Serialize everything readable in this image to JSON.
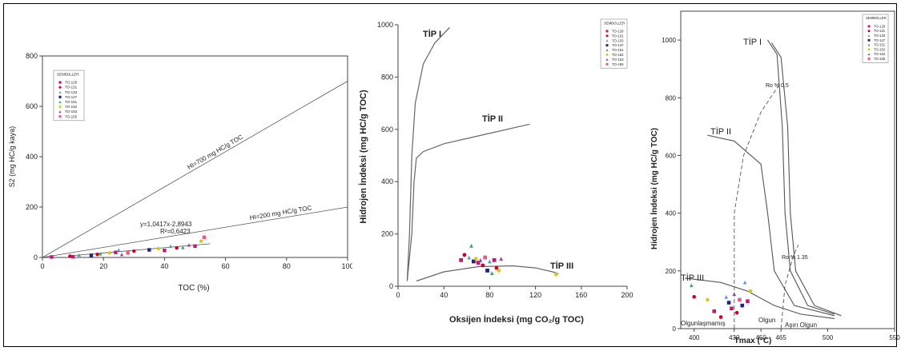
{
  "legend_title": "SEMBOLLER",
  "legend_items": [
    {
      "label": "TO-128",
      "color": "#cc1177",
      "symbol": "square"
    },
    {
      "label": "TO-131",
      "color": "#cc0022",
      "symbol": "circle"
    },
    {
      "label": "TO-133",
      "color": "#5599cc",
      "symbol": "triangle"
    },
    {
      "label": "TO-147",
      "color": "#222288",
      "symbol": "square"
    },
    {
      "label": "TO-151",
      "color": "#33aa55",
      "symbol": "triangle"
    },
    {
      "label": "TO-152",
      "color": "#cccc22",
      "symbol": "circle"
    },
    {
      "label": "TO-153",
      "color": "#9944aa",
      "symbol": "triangle"
    },
    {
      "label": "TO-155",
      "color": "#ee5588",
      "symbol": "square"
    }
  ],
  "chart_data": [
    {
      "type": "scatter",
      "xlabel": "TOC (%)",
      "ylabel": "S2 (mg HC/g kaya)",
      "xlim": [
        0,
        100
      ],
      "ylim": [
        0,
        800
      ],
      "xticks": [
        "0",
        "20",
        "40",
        "60",
        "80",
        "100"
      ],
      "yticks": [
        "0",
        "200",
        "400",
        "600",
        "800"
      ],
      "lines": [
        {
          "label": "HI=700 mg HC/g TOC",
          "slope": 7
        },
        {
          "label": "HI=200 mg HC/g TOC",
          "slope": 2
        }
      ],
      "regression": {
        "equation": "y=1,0417x-2,8943",
        "r2": "R²=0,6423"
      },
      "points": [
        {
          "x": 3,
          "y": 2,
          "s": 0
        },
        {
          "x": 9,
          "y": 5,
          "s": 1
        },
        {
          "x": 10,
          "y": 3,
          "s": 0
        },
        {
          "x": 12,
          "y": 10,
          "s": 2
        },
        {
          "x": 16,
          "y": 8,
          "s": 3
        },
        {
          "x": 18,
          "y": 12,
          "s": 1
        },
        {
          "x": 19,
          "y": 15,
          "s": 4
        },
        {
          "x": 22,
          "y": 18,
          "s": 5
        },
        {
          "x": 24,
          "y": 20,
          "s": 0
        },
        {
          "x": 25,
          "y": 30,
          "s": 2
        },
        {
          "x": 26,
          "y": 12,
          "s": 6
        },
        {
          "x": 28,
          "y": 18,
          "s": 7
        },
        {
          "x": 30,
          "y": 25,
          "s": 1
        },
        {
          "x": 35,
          "y": 30,
          "s": 3
        },
        {
          "x": 38,
          "y": 35,
          "s": 5
        },
        {
          "x": 40,
          "y": 28,
          "s": 0
        },
        {
          "x": 42,
          "y": 45,
          "s": 2
        },
        {
          "x": 44,
          "y": 38,
          "s": 1
        },
        {
          "x": 46,
          "y": 40,
          "s": 4
        },
        {
          "x": 48,
          "y": 50,
          "s": 6
        },
        {
          "x": 50,
          "y": 45,
          "s": 0
        },
        {
          "x": 52,
          "y": 65,
          "s": 5
        },
        {
          "x": 53,
          "y": 80,
          "s": 7
        }
      ]
    },
    {
      "type": "scatter",
      "xlabel": "Oksijen İndeksi (mg CO₂/g TOC)",
      "ylabel": "Hidrojen İndeksi (mg HC/g TOC)",
      "xlim": [
        0,
        200
      ],
      "ylim": [
        0,
        1000
      ],
      "xticks": [
        "0",
        "40",
        "80",
        "120",
        "160",
        "200"
      ],
      "yticks": [
        "0",
        "200",
        "400",
        "600",
        "800",
        "1000"
      ],
      "curve_labels": [
        "TİP I",
        "TİP II",
        "TİP III"
      ],
      "points": [
        {
          "x": 55,
          "y": 100,
          "s": 0
        },
        {
          "x": 58,
          "y": 120,
          "s": 1
        },
        {
          "x": 62,
          "y": 110,
          "s": 2
        },
        {
          "x": 64,
          "y": 155,
          "s": 4
        },
        {
          "x": 66,
          "y": 95,
          "s": 3
        },
        {
          "x": 68,
          "y": 105,
          "s": 5
        },
        {
          "x": 70,
          "y": 90,
          "s": 0
        },
        {
          "x": 72,
          "y": 100,
          "s": 6
        },
        {
          "x": 74,
          "y": 80,
          "s": 1
        },
        {
          "x": 76,
          "y": 110,
          "s": 7
        },
        {
          "x": 78,
          "y": 60,
          "s": 3
        },
        {
          "x": 80,
          "y": 95,
          "s": 2
        },
        {
          "x": 82,
          "y": 50,
          "s": 4
        },
        {
          "x": 84,
          "y": 100,
          "s": 0
        },
        {
          "x": 86,
          "y": 70,
          "s": 1
        },
        {
          "x": 88,
          "y": 60,
          "s": 5
        },
        {
          "x": 90,
          "y": 105,
          "s": 6
        },
        {
          "x": 138,
          "y": 45,
          "s": 5
        }
      ]
    },
    {
      "type": "scatter",
      "xlabel": "Tmax (°C)",
      "ylabel": "Hidrojen İndeksi (mg HC/g TOC)",
      "xlim": [
        390,
        550
      ],
      "ylim": [
        0,
        1100
      ],
      "xticks": [
        "400",
        "430",
        "450",
        "465",
        "500",
        "550"
      ],
      "yticks": [
        "0",
        "200",
        "400",
        "600",
        "800",
        "1000"
      ],
      "curve_labels": [
        "TİP I",
        "TİP II",
        "TİP III"
      ],
      "zone_labels": [
        "Olgunlaşmamış",
        "Olgun",
        "Aşırı Olgun"
      ],
      "ro_labels": [
        "Ro % 0.5",
        "Ro % 1.35"
      ],
      "points": [
        {
          "x": 398,
          "y": 150,
          "s": 4
        },
        {
          "x": 400,
          "y": 110,
          "s": 1
        },
        {
          "x": 410,
          "y": 100,
          "s": 5
        },
        {
          "x": 415,
          "y": 60,
          "s": 0
        },
        {
          "x": 420,
          "y": 40,
          "s": 1
        },
        {
          "x": 424,
          "y": 110,
          "s": 2
        },
        {
          "x": 426,
          "y": 90,
          "s": 3
        },
        {
          "x": 428,
          "y": 70,
          "s": 0
        },
        {
          "x": 430,
          "y": 120,
          "s": 6
        },
        {
          "x": 432,
          "y": 55,
          "s": 1
        },
        {
          "x": 434,
          "y": 100,
          "s": 7
        },
        {
          "x": 436,
          "y": 80,
          "s": 3
        },
        {
          "x": 438,
          "y": 160,
          "s": 2
        },
        {
          "x": 440,
          "y": 95,
          "s": 0
        },
        {
          "x": 442,
          "y": 130,
          "s": 5
        }
      ]
    }
  ]
}
